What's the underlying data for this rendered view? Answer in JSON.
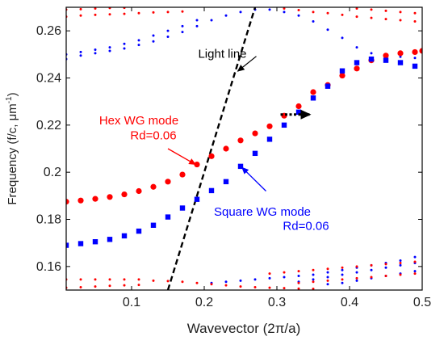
{
  "chart_data": {
    "type": "scatter",
    "xlabel": "Wavevector (2π/a)",
    "ylabel": "Frequency (f/c, μm",
    "ylabel_sup": "-1",
    "ylabel_end": ")",
    "xlim": [
      0.01,
      0.5
    ],
    "ylim": [
      0.15,
      0.27
    ],
    "xticks": [
      0.1,
      0.2,
      0.3,
      0.4,
      0.5
    ],
    "xtick_labels": [
      "0.1",
      "0.2",
      "0.3",
      "0.4",
      "0.5"
    ],
    "yticks": [
      0.16,
      0.18,
      0.2,
      0.22,
      0.24,
      0.26
    ],
    "ytick_labels": [
      "0.16",
      "0.18",
      "0.2",
      "0.22",
      "0.24",
      "0.26"
    ],
    "grid": false,
    "series": [
      {
        "key": "hex",
        "marker": "circle",
        "color": "#ff0000",
        "points": [
          [
            0.01,
            0.1875
          ],
          [
            0.03,
            0.188
          ],
          [
            0.05,
            0.1887
          ],
          [
            0.07,
            0.1895
          ],
          [
            0.09,
            0.1906
          ],
          [
            0.11,
            0.192
          ],
          [
            0.13,
            0.1938
          ],
          [
            0.15,
            0.196
          ],
          [
            0.17,
            0.199
          ],
          [
            0.19,
            0.2033
          ],
          [
            0.21,
            0.2068
          ],
          [
            0.23,
            0.21
          ],
          [
            0.25,
            0.2135
          ],
          [
            0.27,
            0.2165
          ],
          [
            0.29,
            0.2195
          ],
          [
            0.31,
            0.224
          ],
          [
            0.33,
            0.228
          ],
          [
            0.35,
            0.234
          ],
          [
            0.37,
            0.237
          ],
          [
            0.39,
            0.241
          ],
          [
            0.41,
            0.244
          ],
          [
            0.43,
            0.2475
          ],
          [
            0.45,
            0.2495
          ],
          [
            0.47,
            0.2505
          ],
          [
            0.49,
            0.251
          ],
          [
            0.5,
            0.2515
          ]
        ]
      },
      {
        "key": "square",
        "marker": "square",
        "color": "#0000ff",
        "points": [
          [
            0.01,
            0.169
          ],
          [
            0.03,
            0.1697
          ],
          [
            0.05,
            0.1705
          ],
          [
            0.07,
            0.1715
          ],
          [
            0.09,
            0.173
          ],
          [
            0.11,
            0.175
          ],
          [
            0.13,
            0.1775
          ],
          [
            0.15,
            0.181
          ],
          [
            0.17,
            0.1848
          ],
          [
            0.19,
            0.1885
          ],
          [
            0.21,
            0.1922
          ],
          [
            0.23,
            0.196
          ],
          [
            0.25,
            0.2025
          ],
          [
            0.27,
            0.208
          ],
          [
            0.29,
            0.214
          ],
          [
            0.31,
            0.22
          ],
          [
            0.33,
            0.2255
          ],
          [
            0.35,
            0.2315
          ],
          [
            0.37,
            0.2365
          ],
          [
            0.39,
            0.243
          ],
          [
            0.41,
            0.2465
          ],
          [
            0.43,
            0.248
          ],
          [
            0.45,
            0.2475
          ],
          [
            0.47,
            0.2465
          ],
          [
            0.49,
            0.245
          ]
        ]
      }
    ],
    "faint_bands": [
      {
        "color": "#ff0000",
        "points": [
          [
            0.01,
            0.266
          ],
          [
            0.03,
            0.2665
          ],
          [
            0.05,
            0.2668
          ],
          [
            0.07,
            0.267
          ],
          [
            0.09,
            0.2672
          ],
          [
            0.11,
            0.2675
          ],
          [
            0.13,
            0.2678
          ],
          [
            0.15,
            0.268
          ],
          [
            0.17,
            0.2682
          ],
          [
            0.31,
            0.2695
          ],
          [
            0.33,
            0.2688
          ],
          [
            0.35,
            0.268
          ],
          [
            0.37,
            0.2675
          ],
          [
            0.39,
            0.2668
          ],
          [
            0.41,
            0.266
          ],
          [
            0.43,
            0.2655
          ],
          [
            0.45,
            0.265
          ],
          [
            0.47,
            0.2645
          ],
          [
            0.49,
            0.264
          ]
        ]
      },
      {
        "color": "#ff0000",
        "points": [
          [
            0.01,
            0.269
          ],
          [
            0.03,
            0.2692
          ],
          [
            0.05,
            0.2695
          ],
          [
            0.07,
            0.2697
          ],
          [
            0.09,
            0.2698
          ],
          [
            0.41,
            0.2695
          ],
          [
            0.43,
            0.269
          ],
          [
            0.45,
            0.2685
          ],
          [
            0.47,
            0.268
          ],
          [
            0.49,
            0.2675
          ]
        ]
      },
      {
        "color": "#0000ff",
        "points": [
          [
            0.01,
            0.248
          ],
          [
            0.03,
            0.2495
          ],
          [
            0.05,
            0.2505
          ],
          [
            0.07,
            0.2515
          ],
          [
            0.09,
            0.2525
          ],
          [
            0.11,
            0.254
          ],
          [
            0.13,
            0.2555
          ],
          [
            0.15,
            0.2575
          ],
          [
            0.17,
            0.2595
          ],
          [
            0.19,
            0.262
          ],
          [
            0.21,
            0.2645
          ],
          [
            0.23,
            0.2665
          ],
          [
            0.25,
            0.268
          ],
          [
            0.27,
            0.269
          ],
          [
            0.29,
            0.269
          ],
          [
            0.31,
            0.268
          ],
          [
            0.33,
            0.2665
          ],
          [
            0.35,
            0.264
          ],
          [
            0.37,
            0.2605
          ],
          [
            0.39,
            0.257
          ],
          [
            0.41,
            0.253
          ],
          [
            0.43,
            0.2505
          ],
          [
            0.45,
            0.2495
          ],
          [
            0.47,
            0.249
          ],
          [
            0.49,
            0.2485
          ]
        ]
      },
      {
        "color": "#0000ff",
        "points": [
          [
            0.01,
            0.25
          ],
          [
            0.03,
            0.251
          ],
          [
            0.05,
            0.252
          ],
          [
            0.07,
            0.253
          ],
          [
            0.09,
            0.2545
          ],
          [
            0.11,
            0.256
          ],
          [
            0.13,
            0.258
          ],
          [
            0.15,
            0.26
          ],
          [
            0.17,
            0.262
          ],
          [
            0.19,
            0.2645
          ]
        ]
      },
      {
        "color": "#0000ff",
        "points": [
          [
            0.21,
            0.153
          ],
          [
            0.23,
            0.1535
          ],
          [
            0.25,
            0.154
          ],
          [
            0.27,
            0.1545
          ],
          [
            0.29,
            0.155
          ],
          [
            0.31,
            0.1555
          ],
          [
            0.33,
            0.156
          ],
          [
            0.35,
            0.1565
          ],
          [
            0.37,
            0.1575
          ],
          [
            0.39,
            0.1585
          ],
          [
            0.41,
            0.1595
          ],
          [
            0.43,
            0.1605
          ],
          [
            0.45,
            0.1615
          ],
          [
            0.47,
            0.1625
          ],
          [
            0.49,
            0.164
          ]
        ]
      },
      {
        "color": "#0000ff",
        "points": [
          [
            0.33,
            0.1535
          ],
          [
            0.35,
            0.1545
          ],
          [
            0.37,
            0.1555
          ],
          [
            0.39,
            0.1565
          ],
          [
            0.41,
            0.1575
          ],
          [
            0.43,
            0.1585
          ],
          [
            0.45,
            0.1595
          ],
          [
            0.47,
            0.1605
          ],
          [
            0.49,
            0.1615
          ]
        ]
      },
      {
        "color": "#0000ff",
        "points": [
          [
            0.37,
            0.1525
          ],
          [
            0.39,
            0.153
          ],
          [
            0.41,
            0.154
          ],
          [
            0.43,
            0.155
          ],
          [
            0.45,
            0.156
          ],
          [
            0.47,
            0.157
          ],
          [
            0.49,
            0.158
          ]
        ]
      },
      {
        "color": "#ff0000",
        "points": [
          [
            0.01,
            0.1545
          ],
          [
            0.03,
            0.1545
          ],
          [
            0.05,
            0.1545
          ],
          [
            0.07,
            0.1545
          ],
          [
            0.09,
            0.1545
          ],
          [
            0.11,
            0.1545
          ],
          [
            0.13,
            0.154
          ],
          [
            0.15,
            0.1538
          ],
          [
            0.17,
            0.1535
          ],
          [
            0.19,
            0.153
          ],
          [
            0.21,
            0.1525
          ],
          [
            0.23,
            0.152
          ],
          [
            0.25,
            0.1515
          ],
          [
            0.27,
            0.1512
          ],
          [
            0.29,
            0.151
          ],
          [
            0.31,
            0.1508
          ],
          [
            0.33,
            0.1506
          ],
          [
            0.35,
            0.1505
          ]
        ]
      },
      {
        "color": "#ff0000",
        "points": [
          [
            0.01,
            0.151
          ],
          [
            0.03,
            0.1512
          ],
          [
            0.05,
            0.1515
          ],
          [
            0.07,
            0.1518
          ],
          [
            0.09,
            0.152
          ],
          [
            0.11,
            0.1522
          ]
        ]
      },
      {
        "color": "#ff0000",
        "points": [
          [
            0.29,
            0.157
          ],
          [
            0.31,
            0.1575
          ],
          [
            0.33,
            0.158
          ],
          [
            0.35,
            0.1585
          ],
          [
            0.37,
            0.159
          ],
          [
            0.39,
            0.1595
          ],
          [
            0.41,
            0.16
          ],
          [
            0.43,
            0.1605
          ],
          [
            0.45,
            0.161
          ],
          [
            0.47,
            0.1615
          ],
          [
            0.49,
            0.162
          ]
        ]
      },
      {
        "color": "#ff0000",
        "points": [
          [
            0.33,
            0.153
          ],
          [
            0.35,
            0.1535
          ],
          [
            0.37,
            0.154
          ],
          [
            0.39,
            0.1545
          ],
          [
            0.41,
            0.155
          ],
          [
            0.43,
            0.1555
          ],
          [
            0.45,
            0.156
          ],
          [
            0.47,
            0.1565
          ],
          [
            0.49,
            0.157
          ]
        ]
      }
    ],
    "light_line": {
      "points": [
        [
          0.15,
          0.15
        ],
        [
          0.27,
          0.27
        ]
      ]
    },
    "shift_arrow": {
      "from": [
        0.305,
        0.2245
      ],
      "to": [
        0.345,
        0.2245
      ]
    },
    "annotations": [
      {
        "key": "light_line_label",
        "text": "Light line",
        "color": "#000000",
        "anchor": [
          0.225,
          0.2485
        ],
        "arrow_to": [
          0.235,
          0.2415
        ]
      },
      {
        "key": "hex_label_1",
        "text": "Hex WG mode",
        "color": "#ff0000",
        "anchor": [
          0.11,
          0.2203
        ]
      },
      {
        "key": "hex_label_2",
        "text": "Rd=0.06",
        "color": "#ff0000",
        "anchor": [
          0.13,
          0.214
        ]
      },
      {
        "key": "square_label_1",
        "text": "Square WG mode",
        "color": "#0000ff",
        "anchor": [
          0.28,
          0.1815
        ]
      },
      {
        "key": "square_label_2",
        "text": "Rd=0.06",
        "color": "#0000ff",
        "anchor": [
          0.34,
          0.1755
        ]
      }
    ],
    "annotation_arrows": [
      {
        "color": "#ff0000",
        "from": [
          0.15,
          0.21
        ],
        "to": [
          0.188,
          0.2033
        ]
      },
      {
        "color": "#0000ff",
        "from": [
          0.285,
          0.192
        ],
        "to": [
          0.252,
          0.202
        ]
      }
    ]
  }
}
